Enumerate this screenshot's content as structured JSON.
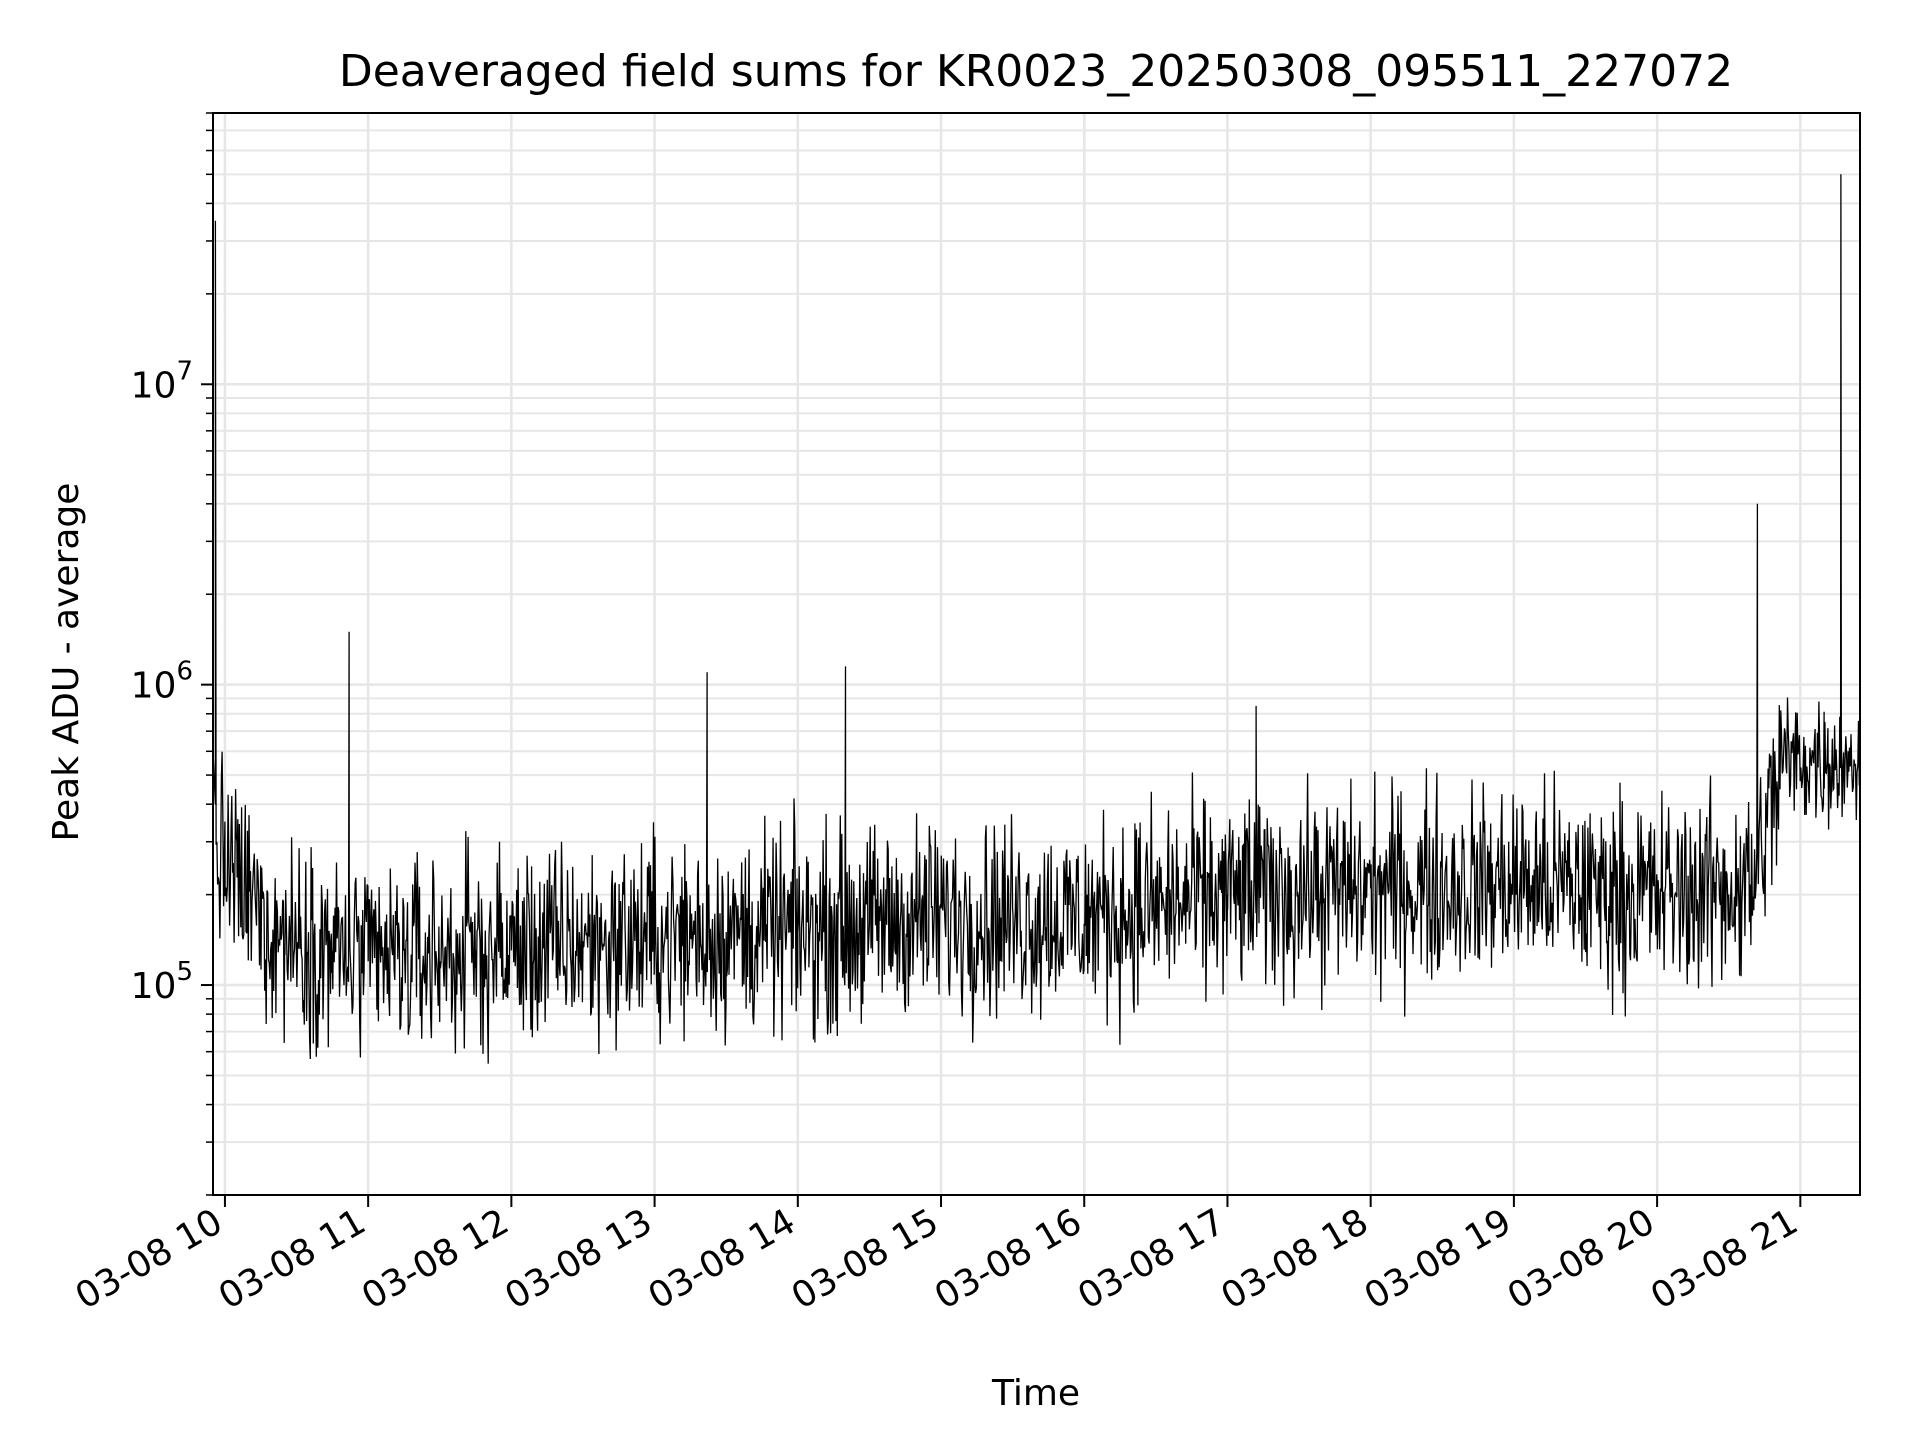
{
  "chart_data": {
    "type": "line",
    "title": "Deaveraged field sums for KR0023_20250308_095511_227072",
    "xlabel": "Time",
    "ylabel": "Peak ADU - average",
    "yscale": "log",
    "ylim": [
      20000,
      80000000
    ],
    "xlim": [
      "03-08 09:55",
      "03-08 21:25"
    ],
    "x_tick_labels": [
      "03-08 10",
      "03-08 11",
      "03-08 12",
      "03-08 13",
      "03-08 14",
      "03-08 15",
      "03-08 16",
      "03-08 17",
      "03-08 18",
      "03-08 19",
      "03-08 20",
      "03-08 21"
    ],
    "y_ticks": [
      {
        "value": 100000,
        "base": "10",
        "exp": "5"
      },
      {
        "value": 1000000,
        "base": "10",
        "exp": "6"
      },
      {
        "value": 10000000,
        "base": "10",
        "exp": "7"
      }
    ],
    "grid": true,
    "line_color": "#000000",
    "grid_color": "#e6e6e6",
    "series": [
      {
        "x": [
          "03-08 09:55",
          "03-08 09:56",
          "03-08 10:00",
          "03-08 10:05",
          "03-08 10:15",
          "03-08 10:25",
          "03-08 10:35",
          "03-08 10:45",
          "03-08 10:52",
          "03-08 11:00",
          "03-08 11:15",
          "03-08 11:30",
          "03-08 11:45",
          "03-08 12:00",
          "03-08 12:30",
          "03-08 13:00",
          "03-08 13:22",
          "03-08 13:30",
          "03-08 14:00",
          "03-08 14:20",
          "03-08 14:30",
          "03-08 15:00",
          "03-08 15:30",
          "03-08 16:00",
          "03-08 16:30",
          "03-08 17:00",
          "03-08 17:12",
          "03-08 17:30",
          "03-08 18:00",
          "03-08 18:30",
          "03-08 19:00",
          "03-08 19:30",
          "03-08 20:00",
          "03-08 20:30",
          "03-08 20:42",
          "03-08 20:50",
          "03-08 21:00",
          "03-08 21:10",
          "03-08 21:17",
          "03-08 21:20",
          "03-08 21:25"
        ],
        "y": [
          600000,
          35000000,
          350000,
          300000,
          250000,
          130000,
          150000,
          130000,
          1500000,
          120000,
          130000,
          120000,
          130000,
          150000,
          140000,
          150000,
          1100000,
          150000,
          150000,
          1150000,
          160000,
          180000,
          180000,
          160000,
          200000,
          200000,
          850000,
          200000,
          210000,
          220000,
          210000,
          210000,
          220000,
          200000,
          4000000,
          250000,
          500000,
          450000,
          50000000,
          600000,
          600000
        ]
      }
    ]
  }
}
